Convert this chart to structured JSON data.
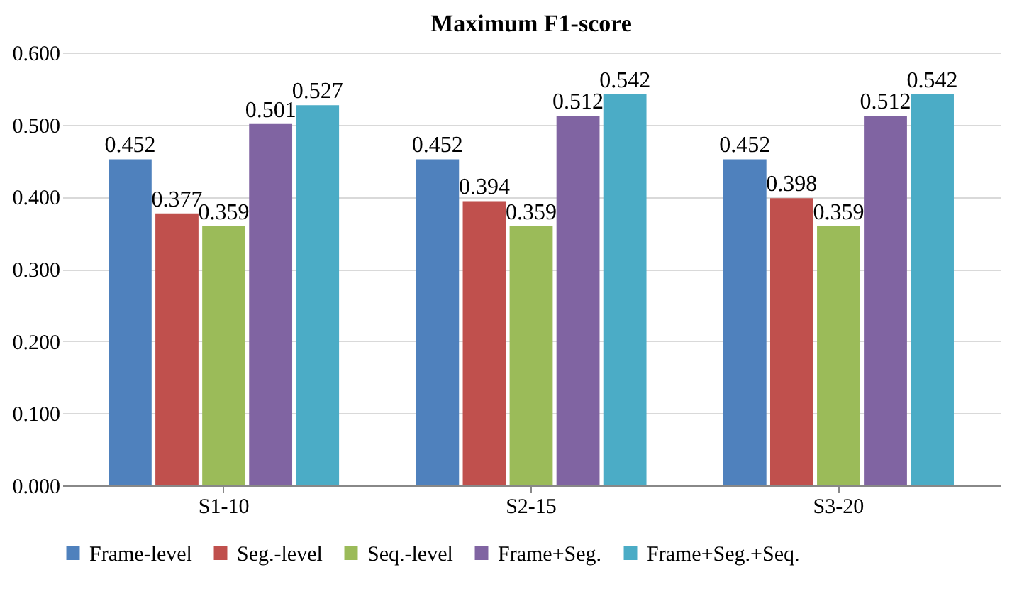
{
  "chart_data": {
    "type": "bar",
    "title": "Maximum F1-score",
    "categories": [
      "S1-10",
      "S2-15",
      "S3-20"
    ],
    "series": [
      {
        "name": "Frame-level",
        "color": "#4f81bd",
        "values": [
          0.452,
          0.452,
          0.452
        ]
      },
      {
        "name": "Seg.-level",
        "color": "#c0504d",
        "values": [
          0.377,
          0.394,
          0.398
        ]
      },
      {
        "name": "Seq.-level",
        "color": "#9bbb59",
        "values": [
          0.359,
          0.359,
          0.359
        ]
      },
      {
        "name": "Frame+Seg.",
        "color": "#8064a2",
        "values": [
          0.501,
          0.512,
          0.512
        ]
      },
      {
        "name": "Frame+Seg.+Seq.",
        "color": "#4bacc6",
        "values": [
          0.527,
          0.542,
          0.542
        ]
      }
    ],
    "ylim": [
      0,
      0.6
    ],
    "yticks": [
      {
        "value": 0,
        "label": "0.000"
      },
      {
        "value": 0.1,
        "label": "0.100"
      },
      {
        "value": 0.2,
        "label": "0.200"
      },
      {
        "value": 0.3,
        "label": "0.300"
      },
      {
        "value": 0.4,
        "label": "0.400"
      },
      {
        "value": 0.5,
        "label": "0.500"
      },
      {
        "value": 0.6,
        "label": "0.600"
      }
    ],
    "grid": "y",
    "legend": "bottom",
    "data_labels": true
  }
}
